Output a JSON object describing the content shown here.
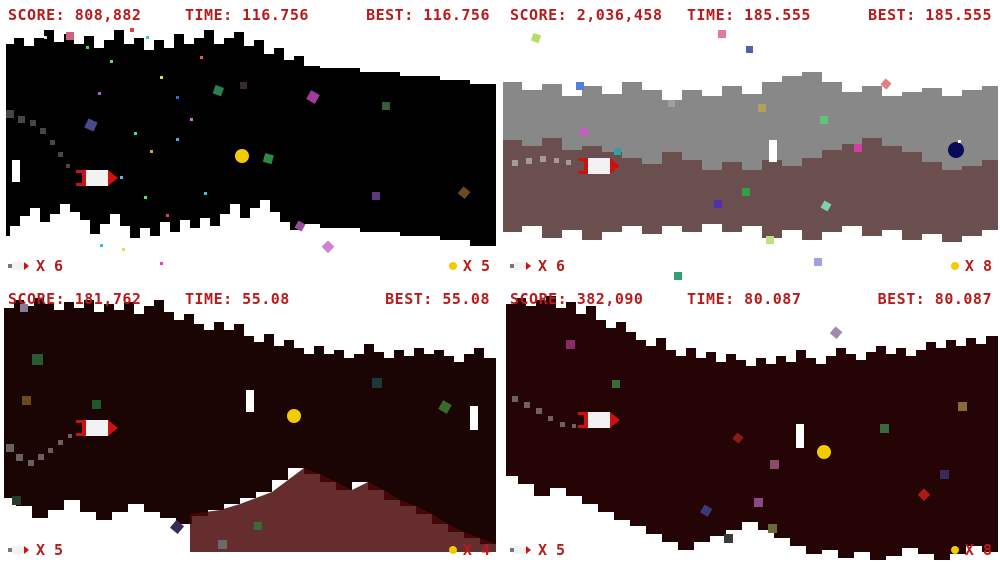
{
  "colors": {
    "hud_text": "#b81b1b",
    "coin": "#f2cc00",
    "rocket_body": "#f2f2f2",
    "rocket_nose": "#cc1111"
  },
  "panels": [
    {
      "score_label": "SCORE: 808,882",
      "time_label": "TIME: 116.756",
      "best_label": "BEST: 116.756",
      "lives_label": "X 6",
      "coins_label": "X 5",
      "theme": "black-cave",
      "icons": [
        "rocket-ship",
        "coin",
        "debris-confetti"
      ]
    },
    {
      "score_label": "SCORE: 2,036,458",
      "time_label": "TIME: 185.555",
      "best_label": "BEST: 185.555",
      "lives_label": "X 6",
      "coins_label": "X 8",
      "theme": "grey-brown-cave",
      "icons": [
        "rocket-ship",
        "dark-orb",
        "debris-confetti"
      ]
    },
    {
      "score_label": "SCORE: 181,762",
      "time_label": "TIME: 55.08",
      "best_label": "BEST: 55.08",
      "lives_label": "X 5",
      "coins_label": "X 4",
      "theme": "dark-red-cave",
      "icons": [
        "rocket-ship",
        "coin",
        "debris-confetti"
      ]
    },
    {
      "score_label": "SCORE: 382,090",
      "time_label": "TIME: 80.087",
      "best_label": "BEST: 80.087",
      "lives_label": "X 5",
      "coins_label": "X 8",
      "theme": "dark-maroon-cave",
      "icons": [
        "rocket-ship",
        "coin",
        "debris-confetti"
      ]
    }
  ]
}
